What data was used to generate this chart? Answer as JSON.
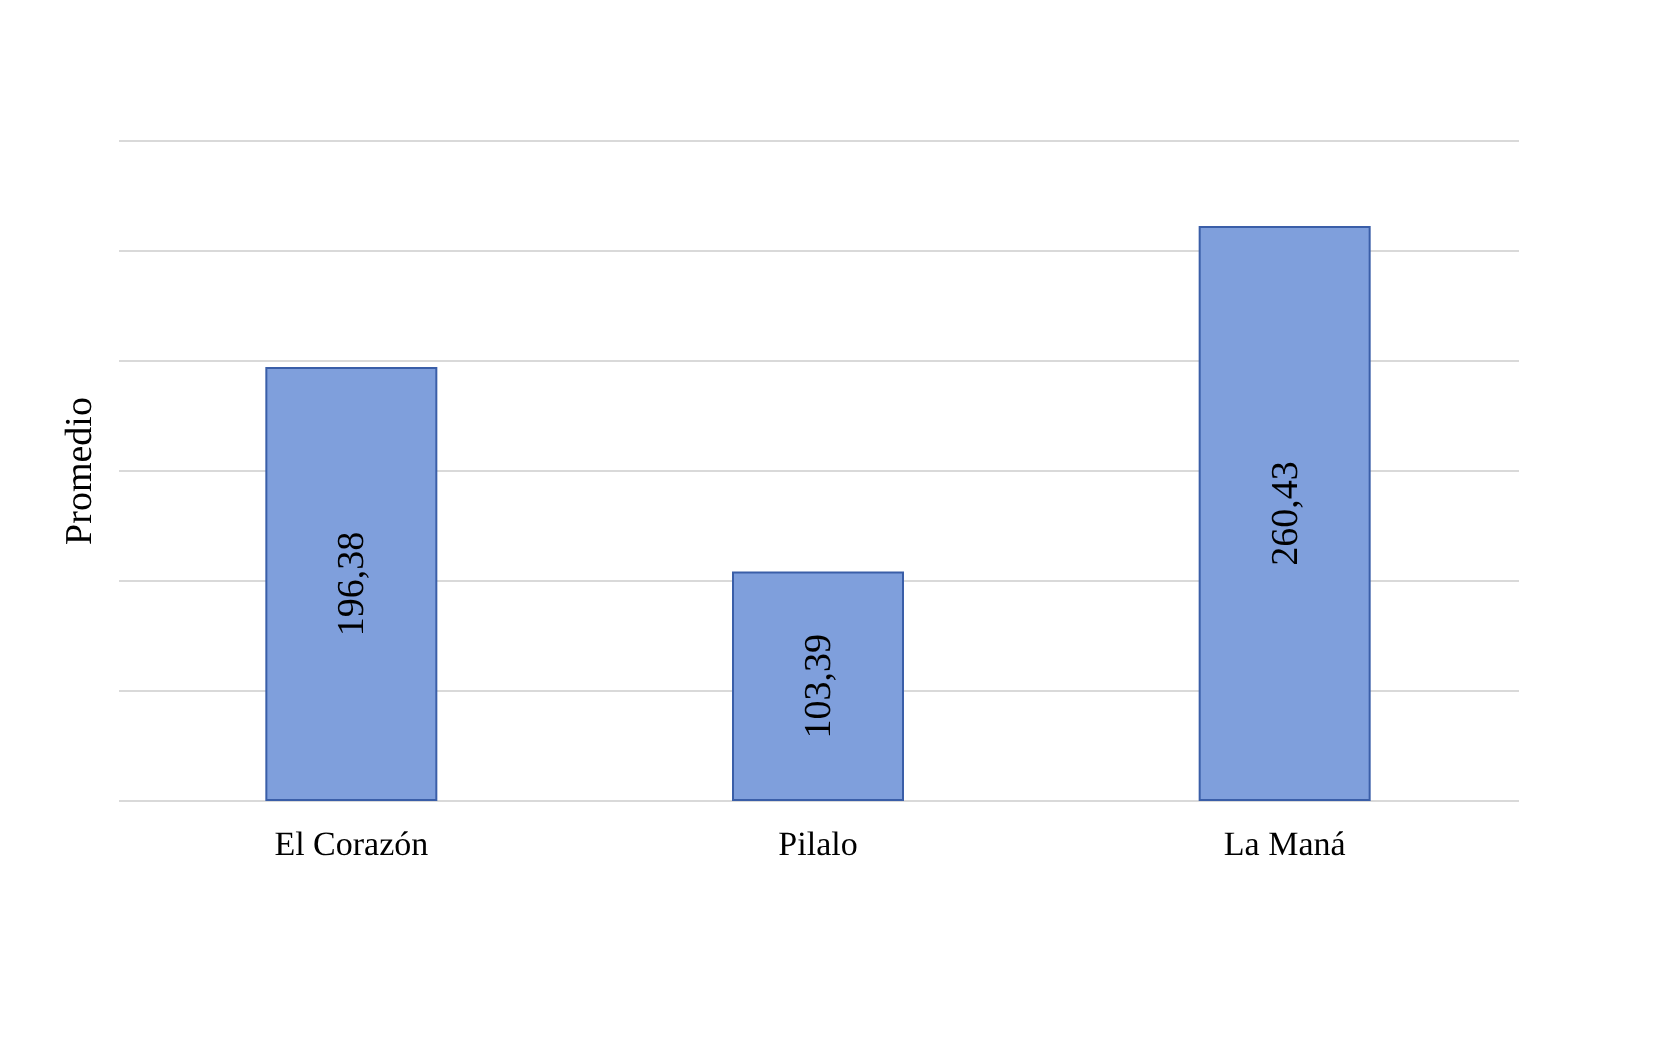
{
  "chart_data": {
    "type": "bar",
    "ylabel": "Promedio",
    "categories": [
      "El Corazón",
      "Pilalo",
      "La Maná"
    ],
    "values": [
      196.38,
      103.39,
      260.43
    ],
    "value_labels": [
      "196,38",
      "103,39",
      "260,43"
    ],
    "color": "#7f9fdc",
    "ylim": [
      0,
      300
    ],
    "yticks": [
      {
        "value": 0,
        "label": null
      },
      {
        "value": 50,
        "label": null
      },
      {
        "value": 100,
        "label": null
      },
      {
        "value": 150,
        "label": null
      },
      {
        "value": 200,
        "label": null
      },
      {
        "value": 250,
        "label": null
      },
      {
        "value": 300,
        "label": null
      }
    ],
    "grid": "y",
    "tick_labels": "x"
  }
}
